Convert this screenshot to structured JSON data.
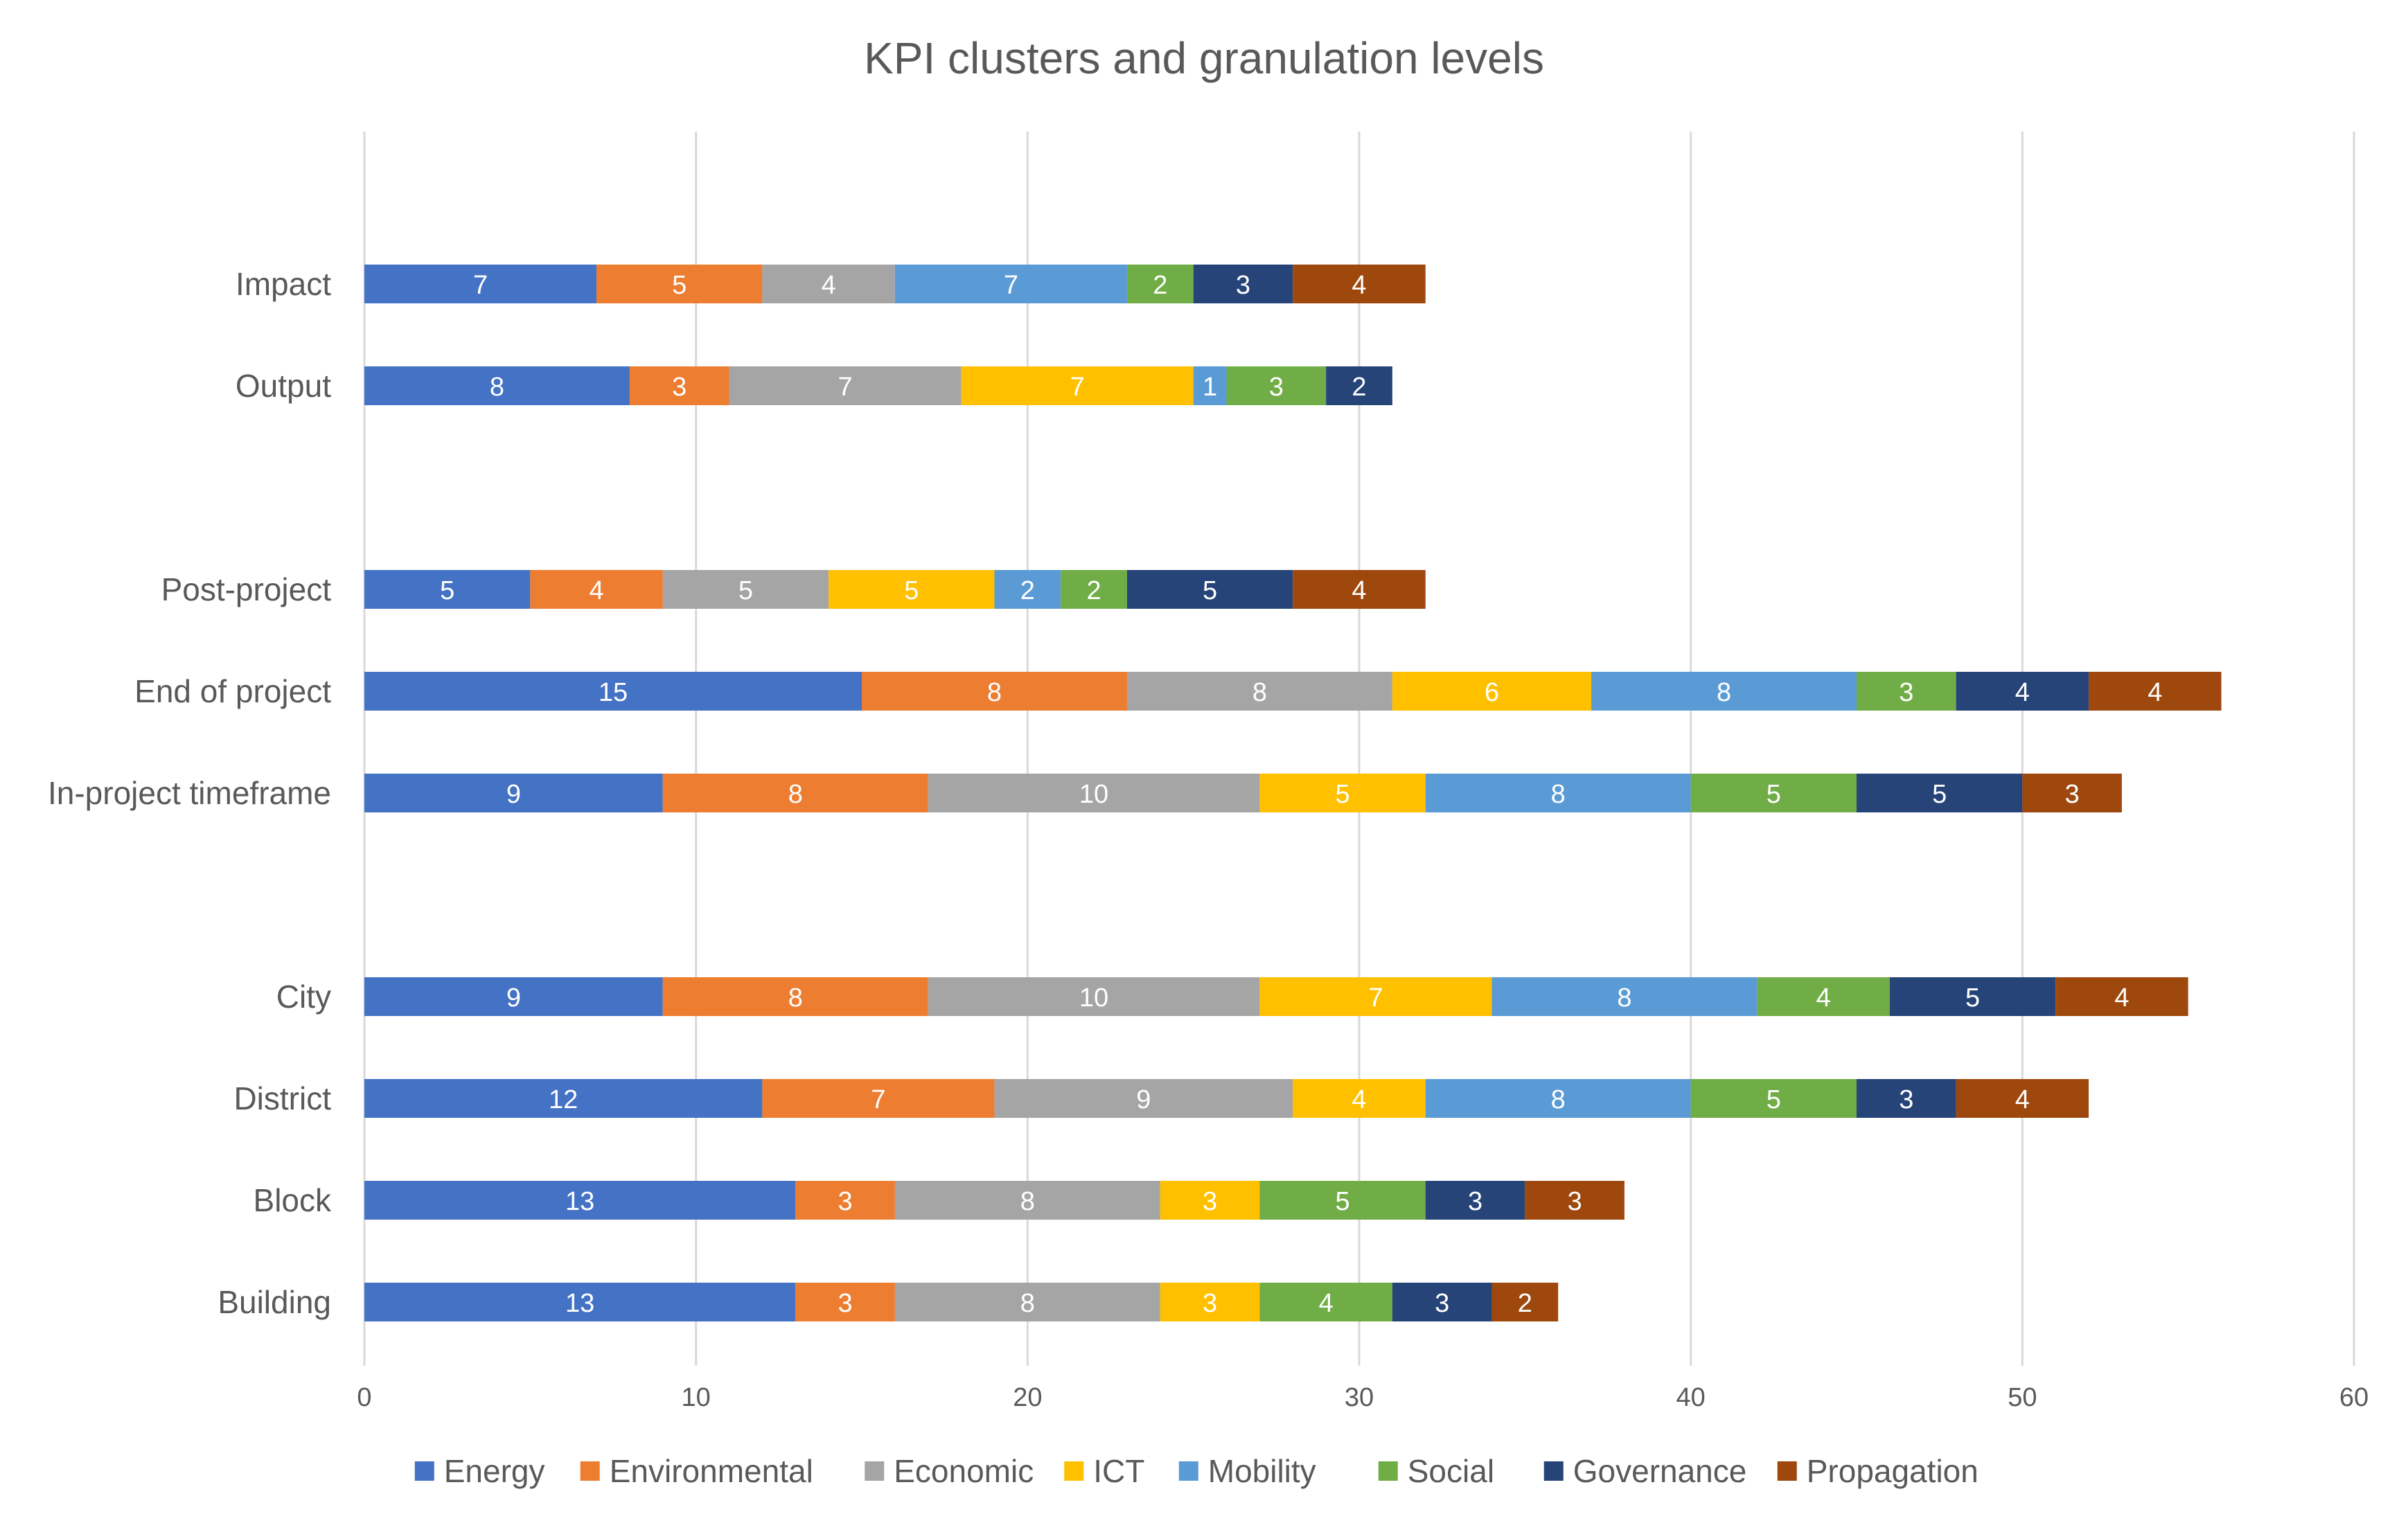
{
  "chart_data": {
    "type": "bar",
    "orientation": "horizontal",
    "stacked": true,
    "title": "KPI clusters and granulation levels",
    "xlabel": "",
    "ylabel": "",
    "xlim": [
      0,
      60
    ],
    "x_ticks": [
      0,
      10,
      20,
      30,
      40,
      50,
      60
    ],
    "grid": true,
    "legend_position": "bottom",
    "series": [
      {
        "name": "Energy",
        "color": "#4472c4"
      },
      {
        "name": "Environmental",
        "color": "#ed7d31"
      },
      {
        "name": "Economic",
        "color": "#a5a5a5"
      },
      {
        "name": "ICT",
        "color": "#ffc000"
      },
      {
        "name": "Mobility",
        "color": "#5b9bd5"
      },
      {
        "name": "Social",
        "color": "#70ad47"
      },
      {
        "name": "Governance",
        "color": "#264478"
      },
      {
        "name": "Propagation",
        "color": "#9e480e"
      }
    ],
    "bars": [
      {
        "category": "Impact",
        "group_gap_before": false,
        "segments": [
          {
            "series": "Energy",
            "value": 7
          },
          {
            "series": "Environmental",
            "value": 5
          },
          {
            "series": "Economic",
            "value": 4
          },
          {
            "series": "Mobility",
            "value": 7
          },
          {
            "series": "Social",
            "value": 2
          },
          {
            "series": "Governance",
            "value": 3
          },
          {
            "series": "Propagation",
            "value": 4
          }
        ]
      },
      {
        "category": "Output",
        "group_gap_before": false,
        "segments": [
          {
            "series": "Energy",
            "value": 8
          },
          {
            "series": "Environmental",
            "value": 3
          },
          {
            "series": "Economic",
            "value": 7
          },
          {
            "series": "ICT",
            "value": 7
          },
          {
            "series": "Mobility",
            "value": 1
          },
          {
            "series": "Social",
            "value": 3
          },
          {
            "series": "Governance",
            "value": 2
          }
        ]
      },
      {
        "category": "Post-project",
        "group_gap_before": true,
        "segments": [
          {
            "series": "Energy",
            "value": 5
          },
          {
            "series": "Environmental",
            "value": 4
          },
          {
            "series": "Economic",
            "value": 5
          },
          {
            "series": "ICT",
            "value": 5
          },
          {
            "series": "Mobility",
            "value": 2
          },
          {
            "series": "Social",
            "value": 2
          },
          {
            "series": "Governance",
            "value": 5
          },
          {
            "series": "Propagation",
            "value": 4
          }
        ]
      },
      {
        "category": "End of project",
        "group_gap_before": false,
        "segments": [
          {
            "series": "Energy",
            "value": 15
          },
          {
            "series": "Environmental",
            "value": 8
          },
          {
            "series": "Economic",
            "value": 8
          },
          {
            "series": "ICT",
            "value": 6
          },
          {
            "series": "Mobility",
            "value": 8
          },
          {
            "series": "Social",
            "value": 3
          },
          {
            "series": "Governance",
            "value": 4
          },
          {
            "series": "Propagation",
            "value": 4
          }
        ]
      },
      {
        "category": "In-project timeframe",
        "group_gap_before": false,
        "segments": [
          {
            "series": "Energy",
            "value": 9
          },
          {
            "series": "Environmental",
            "value": 8
          },
          {
            "series": "Economic",
            "value": 10
          },
          {
            "series": "ICT",
            "value": 5
          },
          {
            "series": "Mobility",
            "value": 8
          },
          {
            "series": "Social",
            "value": 5
          },
          {
            "series": "Governance",
            "value": 5
          },
          {
            "series": "Propagation",
            "value": 3
          }
        ]
      },
      {
        "category": "City",
        "group_gap_before": true,
        "segments": [
          {
            "series": "Energy",
            "value": 9
          },
          {
            "series": "Environmental",
            "value": 8
          },
          {
            "series": "Economic",
            "value": 10
          },
          {
            "series": "ICT",
            "value": 7
          },
          {
            "series": "Mobility",
            "value": 8
          },
          {
            "series": "Social",
            "value": 4
          },
          {
            "series": "Governance",
            "value": 5
          },
          {
            "series": "Propagation",
            "value": 4
          }
        ]
      },
      {
        "category": "District",
        "group_gap_before": false,
        "segments": [
          {
            "series": "Energy",
            "value": 12
          },
          {
            "series": "Environmental",
            "value": 7
          },
          {
            "series": "Economic",
            "value": 9
          },
          {
            "series": "ICT",
            "value": 4
          },
          {
            "series": "Mobility",
            "value": 8
          },
          {
            "series": "Social",
            "value": 5
          },
          {
            "series": "Governance",
            "value": 3
          },
          {
            "series": "Propagation",
            "value": 4
          }
        ]
      },
      {
        "category": "Block",
        "group_gap_before": false,
        "segments": [
          {
            "series": "Energy",
            "value": 13
          },
          {
            "series": "Environmental",
            "value": 3
          },
          {
            "series": "Economic",
            "value": 8
          },
          {
            "series": "ICT",
            "value": 3
          },
          {
            "series": "Social",
            "value": 5
          },
          {
            "series": "Governance",
            "value": 3
          },
          {
            "series": "Propagation",
            "value": 3
          }
        ]
      },
      {
        "category": "Building",
        "group_gap_before": false,
        "segments": [
          {
            "series": "Energy",
            "value": 13
          },
          {
            "series": "Environmental",
            "value": 3
          },
          {
            "series": "Economic",
            "value": 8
          },
          {
            "series": "ICT",
            "value": 3
          },
          {
            "series": "Social",
            "value": 4
          },
          {
            "series": "Governance",
            "value": 3
          },
          {
            "series": "Propagation",
            "value": 2
          }
        ]
      }
    ]
  }
}
